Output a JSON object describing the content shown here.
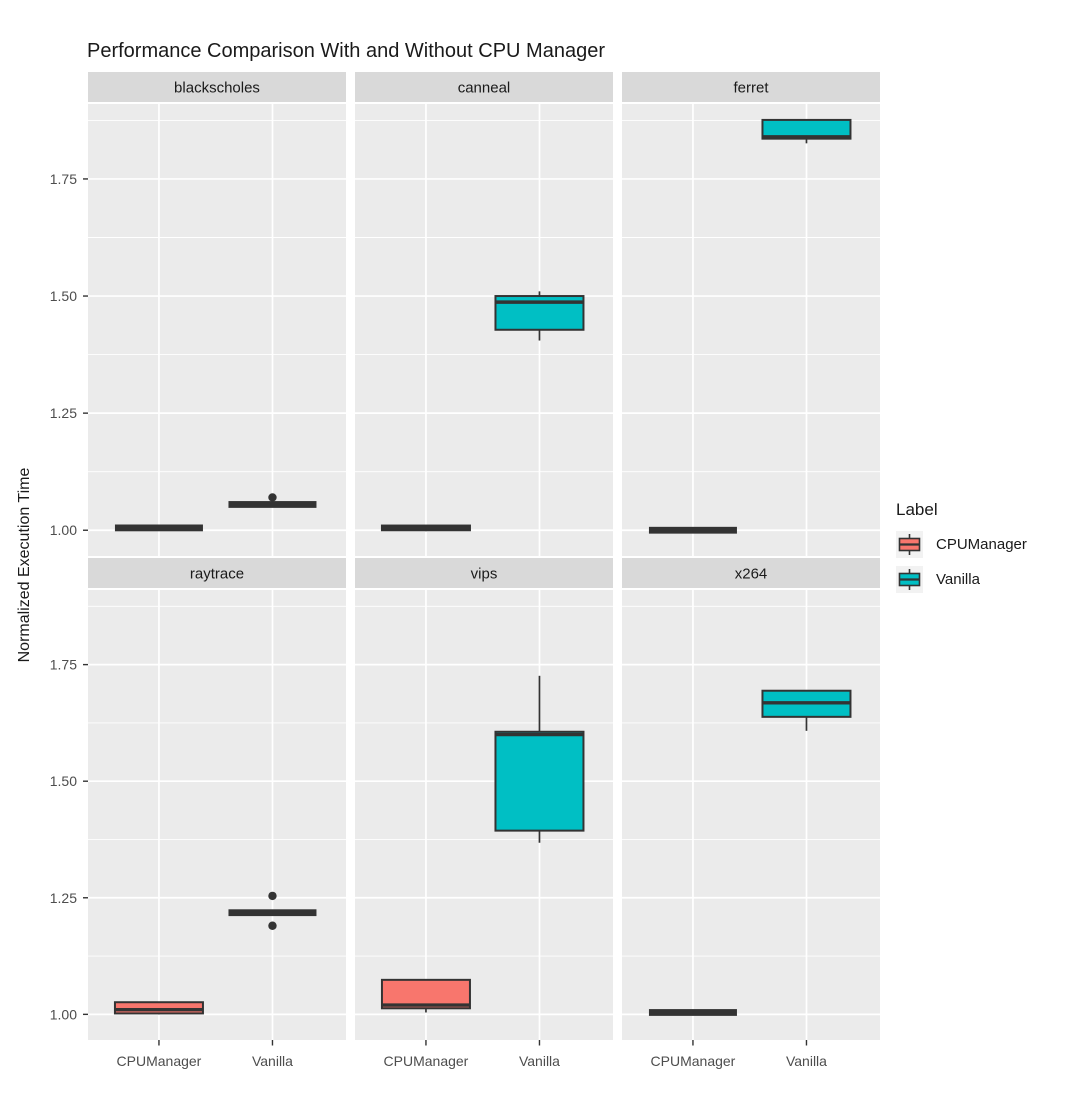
{
  "title": "Performance Comparison With and Without CPU Manager",
  "legend": {
    "title": "Label",
    "entries": [
      {
        "label": "CPUManager",
        "color": "#F8766D"
      },
      {
        "label": "Vanilla",
        "color": "#00BFC4"
      }
    ]
  },
  "colors": {
    "panel_bg": "#EBEBEB",
    "strip_bg": "#D9D9D9",
    "grid": "#FFFFFF",
    "box_line": "#333333",
    "tick_text": "#4D4D4D",
    "text": "#1A1A1A",
    "legend_key_bg": "#F2F2F2",
    "cpumanager": "#F8766D",
    "vanilla": "#00BFC4"
  },
  "chart_data": {
    "type": "boxplot",
    "title": "Performance Comparison With and Without CPU Manager",
    "xlabel": "",
    "ylabel": "Normalized Execution Time",
    "x_categories": [
      "CPUManager",
      "Vanilla"
    ],
    "y_ticks": [
      1.0,
      1.25,
      1.5,
      1.75
    ],
    "y_minor_ticks": [
      1.125,
      1.375,
      1.625,
      1.875
    ],
    "ylim": [
      0.945,
      1.91
    ],
    "legend_position": "right",
    "grid": "white major and minor gridlines on gray panels",
    "facet_grid": [
      [
        "blackscholes",
        "canneal",
        "ferret"
      ],
      [
        "raytrace",
        "vips",
        "x264"
      ]
    ],
    "series_colors": {
      "CPUManager": "#F8766D",
      "Vanilla": "#00BFC4"
    },
    "facets": [
      {
        "name": "blackscholes",
        "boxes": [
          {
            "group": "CPUManager",
            "low": 1.005,
            "q1": 1.005,
            "median": 1.005,
            "q3": 1.005,
            "high": 1.005,
            "outliers": []
          },
          {
            "group": "Vanilla",
            "low": 1.055,
            "q1": 1.055,
            "median": 1.055,
            "q3": 1.055,
            "high": 1.055,
            "outliers": [
              1.07
            ]
          }
        ]
      },
      {
        "name": "canneal",
        "boxes": [
          {
            "group": "CPUManager",
            "low": 0.998,
            "q1": 1.0,
            "median": 1.005,
            "q3": 1.01,
            "high": 1.01,
            "outliers": []
          },
          {
            "group": "Vanilla",
            "low": 1.405,
            "q1": 1.428,
            "median": 1.487,
            "q3": 1.5,
            "high": 1.51,
            "outliers": []
          }
        ]
      },
      {
        "name": "ferret",
        "boxes": [
          {
            "group": "CPUManager",
            "low": 1.0,
            "q1": 1.0,
            "median": 1.0,
            "q3": 1.0,
            "high": 1.0,
            "outliers": []
          },
          {
            "group": "Vanilla",
            "low": 1.826,
            "q1": 1.836,
            "median": 1.84,
            "q3": 1.876,
            "high": 1.876,
            "outliers": []
          }
        ]
      },
      {
        "name": "raytrace",
        "boxes": [
          {
            "group": "CPUManager",
            "low": 1.0,
            "q1": 1.002,
            "median": 1.01,
            "q3": 1.026,
            "high": 1.026,
            "outliers": []
          },
          {
            "group": "Vanilla",
            "low": 1.218,
            "q1": 1.218,
            "median": 1.218,
            "q3": 1.218,
            "high": 1.218,
            "outliers": [
              1.254,
              1.19
            ]
          }
        ]
      },
      {
        "name": "vips",
        "boxes": [
          {
            "group": "CPUManager",
            "low": 1.004,
            "q1": 1.013,
            "median": 1.02,
            "q3": 1.074,
            "high": 1.074,
            "outliers": []
          },
          {
            "group": "Vanilla",
            "low": 1.368,
            "q1": 1.394,
            "median": 1.6,
            "q3": 1.606,
            "high": 1.726,
            "outliers": []
          }
        ]
      },
      {
        "name": "x264",
        "boxes": [
          {
            "group": "CPUManager",
            "low": 1.004,
            "q1": 1.004,
            "median": 1.004,
            "q3": 1.004,
            "high": 1.004,
            "outliers": []
          },
          {
            "group": "Vanilla",
            "low": 1.608,
            "q1": 1.638,
            "median": 1.668,
            "q3": 1.694,
            "high": 1.694,
            "outliers": []
          }
        ]
      }
    ]
  }
}
